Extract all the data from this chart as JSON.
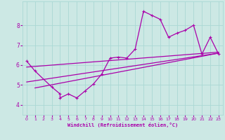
{
  "xlabel": "Windchill (Refroidissement éolien,°C)",
  "bg_color": "#cce8e4",
  "line_color": "#aa00aa",
  "grid_color": "#aad8d4",
  "xlim": [
    -0.5,
    23.5
  ],
  "ylim": [
    3.5,
    9.2
  ],
  "xticks": [
    0,
    1,
    2,
    3,
    4,
    5,
    6,
    7,
    8,
    9,
    10,
    11,
    12,
    13,
    14,
    15,
    16,
    17,
    18,
    19,
    20,
    21,
    22,
    23
  ],
  "yticks": [
    4,
    5,
    6,
    7,
    8
  ],
  "series": [
    [
      0,
      6.2
    ],
    [
      1,
      5.7
    ],
    [
      3,
      4.9
    ],
    [
      4,
      4.55
    ],
    [
      4,
      4.35
    ],
    [
      5,
      4.55
    ],
    [
      6,
      4.35
    ],
    [
      7,
      4.7
    ],
    [
      8,
      5.05
    ],
    [
      9,
      5.55
    ],
    [
      10,
      6.35
    ],
    [
      11,
      6.4
    ],
    [
      12,
      6.35
    ],
    [
      13,
      6.8
    ],
    [
      14,
      8.7
    ],
    [
      15,
      8.5
    ],
    [
      16,
      8.3
    ],
    [
      17,
      7.4
    ],
    [
      18,
      7.6
    ],
    [
      19,
      7.75
    ],
    [
      20,
      8.0
    ],
    [
      21,
      6.55
    ],
    [
      22,
      7.4
    ],
    [
      23,
      6.55
    ]
  ],
  "line1": [
    [
      0,
      5.9
    ],
    [
      23,
      6.65
    ]
  ],
  "line2": [
    [
      1,
      4.85
    ],
    [
      23,
      6.6
    ]
  ],
  "line3": [
    [
      0,
      5.15
    ],
    [
      23,
      6.6
    ]
  ]
}
